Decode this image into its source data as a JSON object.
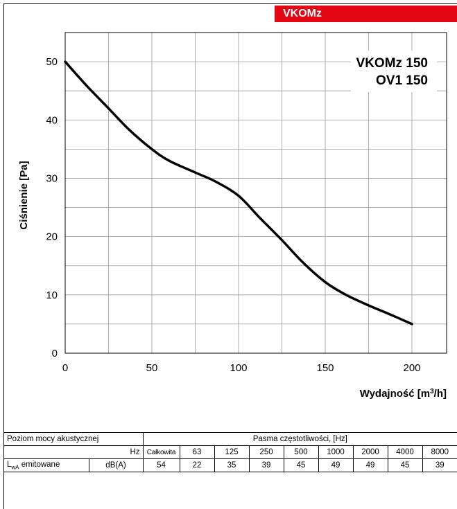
{
  "badge": "VKOMz",
  "chart_data": {
    "type": "line",
    "title": "VKOMz 150",
    "subtitle": "OV1 150",
    "xlabel_main": "Wydajność [m",
    "xlabel_sup": "3",
    "xlabel_end": "/h]",
    "ylabel": "Ciśnienie [Pa]",
    "xlim": [
      0,
      220
    ],
    "ylim": [
      0,
      55
    ],
    "x_ticks": [
      0,
      50,
      100,
      150,
      200
    ],
    "y_ticks": [
      0,
      10,
      20,
      30,
      40,
      50
    ],
    "grid": true,
    "series": [
      {
        "x": [
          0,
          12,
          25,
          37,
          50,
          60,
          75,
          87,
          100,
          112,
          125,
          137,
          150,
          162,
          175,
          187,
          200
        ],
        "y": [
          50,
          46,
          42,
          38.3,
          35,
          33,
          31,
          29.4,
          27,
          23.3,
          19.4,
          15.6,
          12.2,
          10,
          8.2,
          6.7,
          5
        ]
      }
    ]
  },
  "table": {
    "row1_label": "Poziom mocy akustycznej",
    "row1_header": "Pasma częstotliwości, [Hz]",
    "hz_label": "Hz",
    "bands": [
      "Całkowita",
      "63",
      "125",
      "250",
      "500",
      "1000",
      "2000",
      "4000",
      "8000"
    ],
    "lwa_main": "L",
    "lwa_sub": "wA",
    "lwa_rest": " emitowane",
    "unit": "dB(A)",
    "values": [
      "54",
      "22",
      "35",
      "39",
      "45",
      "49",
      "49",
      "45",
      "39"
    ]
  }
}
